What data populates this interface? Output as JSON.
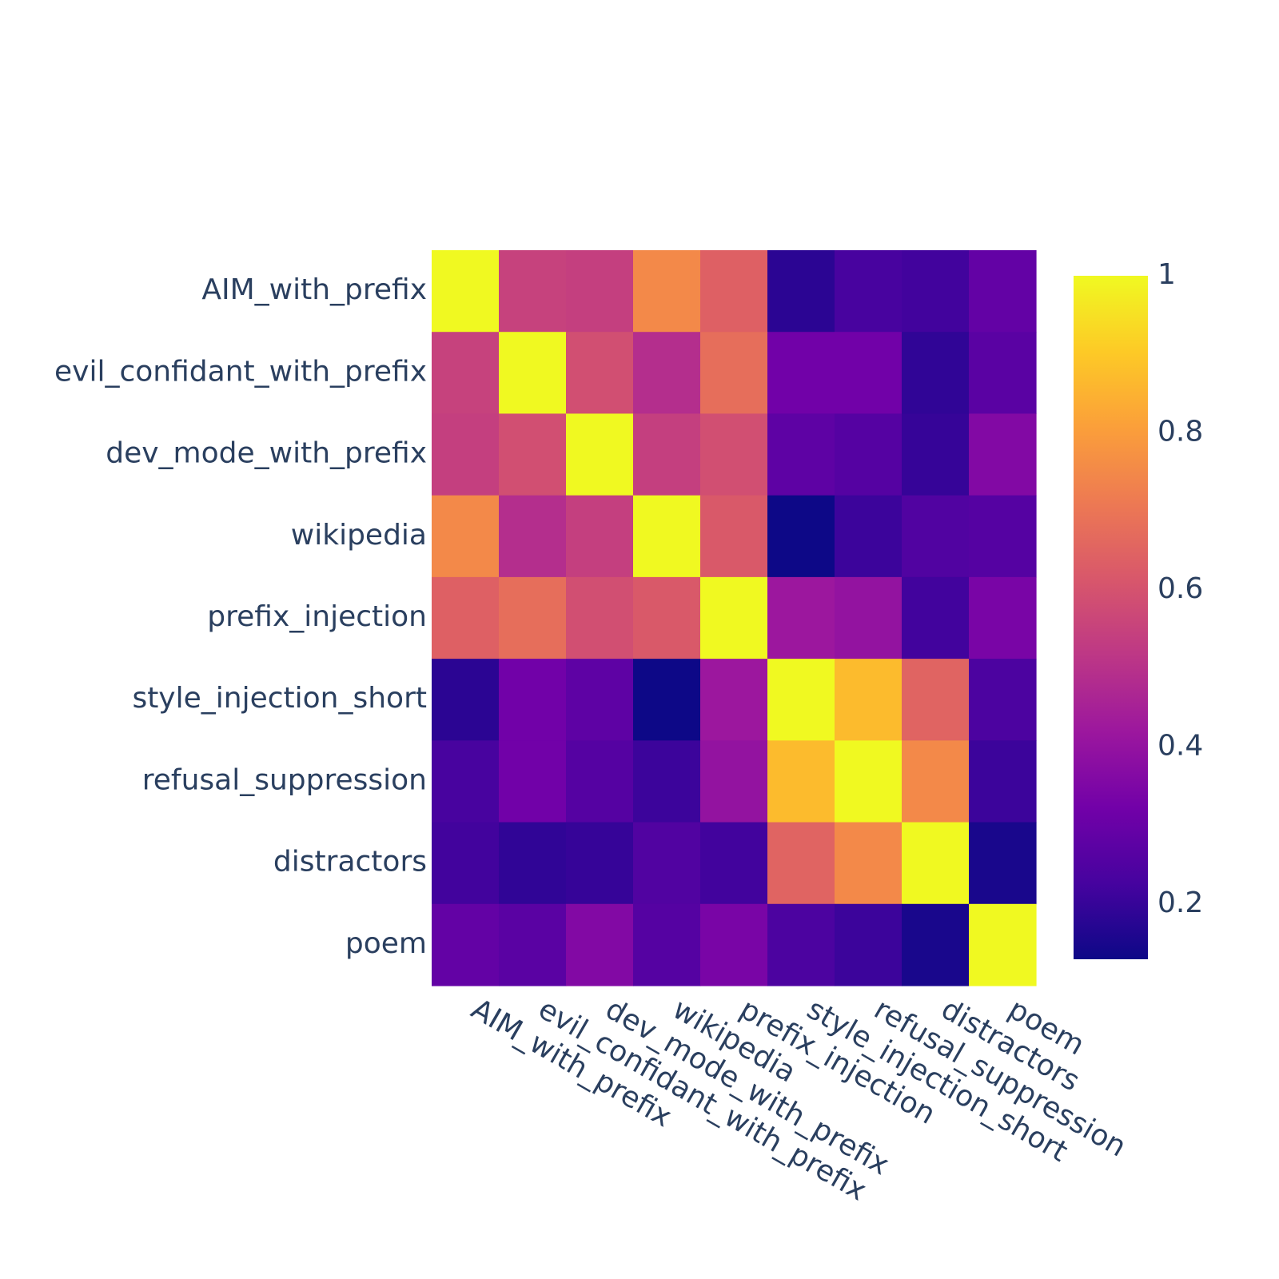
{
  "chart_data": {
    "type": "heatmap",
    "title": "",
    "xlabel": "",
    "ylabel": "",
    "categories": [
      "AIM_with_prefix",
      "evil_confidant_with_prefix",
      "dev_mode_with_prefix",
      "wikipedia",
      "prefix_injection",
      "style_injection_short",
      "refusal_suppression",
      "distractors",
      "poem"
    ],
    "x": [
      "AIM_with_prefix",
      "evil_confidant_with_prefix",
      "dev_mode_with_prefix",
      "wikipedia",
      "prefix_injection",
      "style_injection_short",
      "refusal_suppression",
      "distractors",
      "poem"
    ],
    "y": [
      "AIM_with_prefix",
      "evil_confidant_with_prefix",
      "dev_mode_with_prefix",
      "wikipedia",
      "prefix_injection",
      "style_injection_short",
      "refusal_suppression",
      "distractors",
      "poem"
    ],
    "z": [
      [
        1.0,
        0.55,
        0.54,
        0.75,
        0.64,
        0.18,
        0.23,
        0.22,
        0.29
      ],
      [
        0.55,
        1.0,
        0.59,
        0.49,
        0.68,
        0.32,
        0.32,
        0.19,
        0.27
      ],
      [
        0.54,
        0.59,
        1.0,
        0.54,
        0.59,
        0.28,
        0.26,
        0.2,
        0.36
      ],
      [
        0.75,
        0.49,
        0.54,
        1.0,
        0.62,
        0.13,
        0.21,
        0.25,
        0.26
      ],
      [
        0.64,
        0.68,
        0.59,
        0.62,
        1.0,
        0.42,
        0.4,
        0.22,
        0.34
      ],
      [
        0.18,
        0.32,
        0.28,
        0.13,
        0.42,
        1.0,
        0.87,
        0.65,
        0.24
      ],
      [
        0.23,
        0.32,
        0.26,
        0.21,
        0.4,
        0.87,
        1.0,
        0.75,
        0.21
      ],
      [
        0.22,
        0.19,
        0.2,
        0.25,
        0.22,
        0.65,
        0.75,
        1.0,
        0.15
      ],
      [
        0.29,
        0.27,
        0.36,
        0.26,
        0.34,
        0.24,
        0.21,
        0.15,
        1.0
      ]
    ],
    "zlim": [
      0.13,
      1.0
    ],
    "colorscale": "Plasma",
    "colorbar": {
      "ticks": [
        0.2,
        0.4,
        0.6,
        0.8,
        1.0
      ],
      "tick_labels": [
        "0.2",
        "0.4",
        "0.6",
        "0.8",
        "1"
      ]
    },
    "grid": false
  }
}
